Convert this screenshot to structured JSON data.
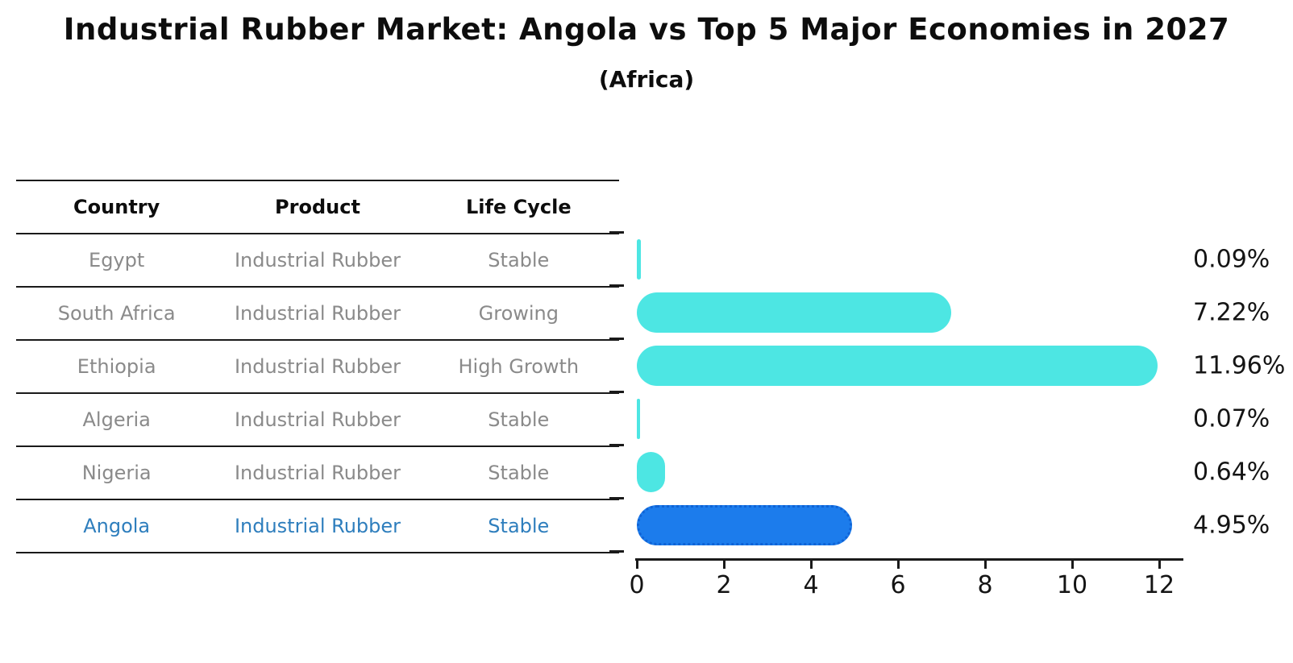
{
  "chart": {
    "title": "Industrial Rubber Market: Angola vs Top 5 Major Economies in 2027",
    "subtitle": "(Africa)"
  },
  "table": {
    "headers": [
      "Country",
      "Product",
      "Life Cycle"
    ],
    "rows": [
      {
        "country": "Egypt",
        "product": "Industrial Rubber",
        "life_cycle": "Stable",
        "highlight": false
      },
      {
        "country": "South Africa",
        "product": "Industrial Rubber",
        "life_cycle": "Growing",
        "highlight": false
      },
      {
        "country": "Ethiopia",
        "product": "Industrial Rubber",
        "life_cycle": "High Growth",
        "highlight": false
      },
      {
        "country": "Algeria",
        "product": "Industrial Rubber",
        "life_cycle": "Stable",
        "highlight": false
      },
      {
        "country": "Nigeria",
        "product": "Industrial Rubber",
        "life_cycle": "Stable",
        "highlight": false
      },
      {
        "country": "Angola",
        "product": "Industrial Rubber",
        "life_cycle": "Stable",
        "highlight": true
      }
    ]
  },
  "chart_data": {
    "type": "bar",
    "orientation": "horizontal",
    "title": "Industrial Rubber Market: Angola vs Top 5 Major Economies in 2027",
    "subtitle": "(Africa)",
    "categories": [
      "Egypt",
      "South Africa",
      "Ethiopia",
      "Algeria",
      "Nigeria",
      "Angola"
    ],
    "values": [
      0.09,
      7.22,
      11.96,
      0.07,
      0.64,
      4.95
    ],
    "value_labels": [
      "0.09%",
      "7.22%",
      "11.96%",
      "0.07%",
      "0.64%",
      "4.95%"
    ],
    "xlabel": "",
    "ylabel": "",
    "xlim": [
      0,
      12.6
    ],
    "x_ticks": [
      0,
      2,
      4,
      6,
      8,
      10,
      12
    ],
    "grid": false,
    "legend": "none",
    "bar_color": "#4de6e3",
    "highlight_index": 5,
    "highlight_bar_color": "#1c7cec",
    "highlight_text_color": "#2e7ebd",
    "row_text_color": "#8a8a8a"
  }
}
